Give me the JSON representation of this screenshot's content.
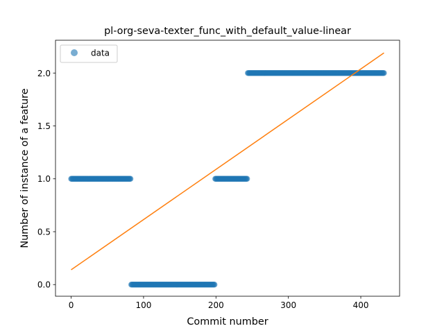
{
  "chart_data": {
    "type": "scatter",
    "title": "pl-org-seva-texter_func_with_default_value-linear",
    "xlabel": "Commit number",
    "ylabel": "Number of instance of a feature",
    "xlim": [
      -21.6,
      453.6
    ],
    "ylim": [
      -0.11,
      2.31
    ],
    "xticks": [
      0,
      100,
      200,
      300,
      400
    ],
    "yticks": [
      0.0,
      0.5,
      1.0,
      1.5,
      2.0
    ],
    "xtick_labels": [
      "0",
      "100",
      "200",
      "300",
      "400"
    ],
    "ytick_labels": [
      "0.0",
      "0.5",
      "1.0",
      "1.5",
      "2.0"
    ],
    "grid": false,
    "legend": {
      "placement": "upper-left",
      "entries": [
        "data"
      ]
    },
    "series": [
      {
        "name": "data",
        "kind": "scatter",
        "color": "#1f77b4",
        "segments": [
          {
            "x_start": 0,
            "x_end": 82,
            "y": 1
          },
          {
            "x_start": 83,
            "x_end": 198,
            "y": 0
          },
          {
            "x_start": 199,
            "x_end": 243,
            "y": 1
          },
          {
            "x_start": 244,
            "x_end": 432,
            "y": 2
          }
        ]
      },
      {
        "kind": "line",
        "color": "#ff7f0e",
        "x": [
          0,
          432
        ],
        "y": [
          0.14,
          2.19
        ]
      }
    ]
  }
}
